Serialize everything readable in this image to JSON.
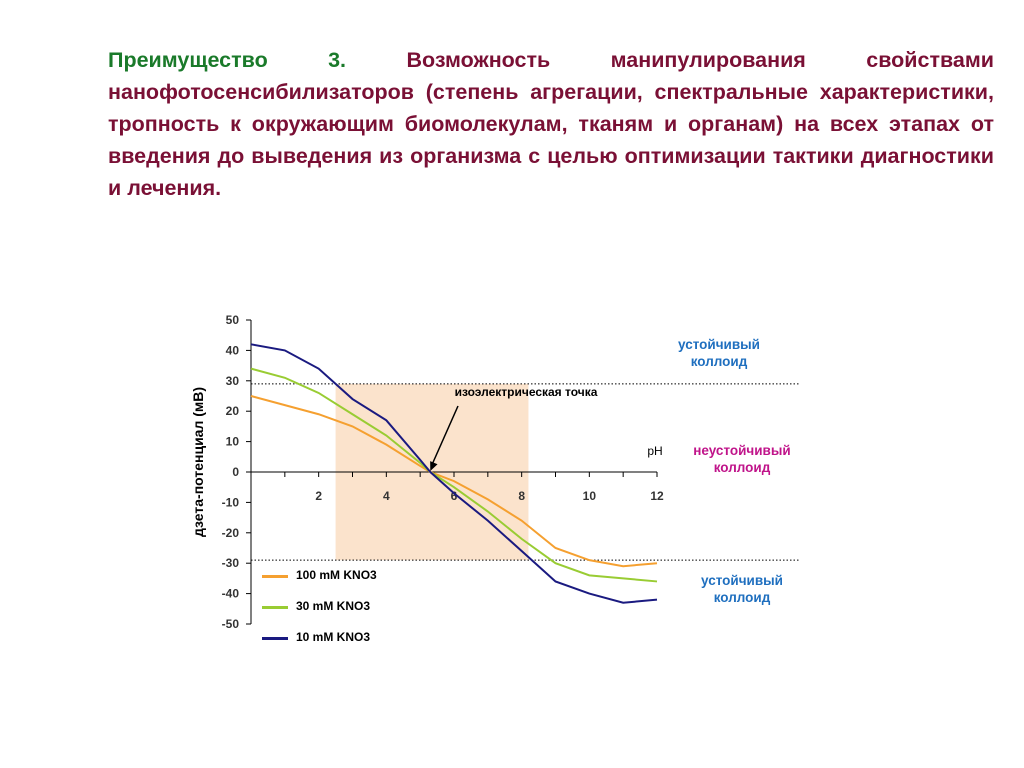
{
  "slide": {
    "lead": "Преимущество 3.",
    "text": "Возможность манипулирования свойствами нанофотосенсибилизаторов (степень агрегации, спектральные характеристики, тропность к окружающим биомолекулам, тканям и органам) на всех этапах от введения до выведения из организма с целью оптимизации тактики диагностики и лечения.",
    "lead_color": "#1a7a2a",
    "text_color": "#7a1035"
  },
  "chart_data": {
    "type": "line",
    "title": "",
    "xlabel": "pH",
    "ylabel": "дзета-потенциал (мВ)",
    "xlim": [
      0,
      12
    ],
    "ylim": [
      -50,
      50
    ],
    "x_ticks": [
      2,
      4,
      6,
      8,
      10,
      12
    ],
    "y_ticks": [
      50,
      40,
      30,
      20,
      10,
      0,
      -10,
      -20,
      -30,
      -40,
      -50
    ],
    "grid": false,
    "legend_position": "bottom-left",
    "shaded_region": {
      "x": [
        2.5,
        8.2
      ],
      "y": [
        -29,
        29
      ],
      "color": "#fbe3cc"
    },
    "threshold_lines": [
      29,
      -29
    ],
    "isoelectric_point": {
      "x": 5.3,
      "y": 0,
      "label": "изоэлектрическая точка"
    },
    "zones": [
      {
        "label": "устойчивый\nколлоид",
        "color": "#1f6fbf"
      },
      {
        "label": "неустойчивый\nколлоид",
        "color": "#c0148a"
      },
      {
        "label": "устойчивый\nколлоид",
        "color": "#1f6fbf"
      }
    ],
    "series": [
      {
        "name": "100 mM KNO3",
        "color": "#f5a030",
        "x": [
          0,
          1,
          2,
          3,
          4,
          5,
          5.3,
          6,
          7,
          8,
          9,
          10,
          11,
          12
        ],
        "y": [
          25,
          22,
          19,
          15,
          9,
          2,
          0,
          -3,
          -9,
          -16,
          -25,
          -29,
          -31,
          -30
        ]
      },
      {
        "name": "30 mM KNO3",
        "color": "#99cc33",
        "x": [
          0,
          1,
          2,
          3,
          4,
          5,
          5.3,
          6,
          7,
          8,
          9,
          10,
          11,
          12
        ],
        "y": [
          34,
          31,
          26,
          19,
          12,
          3,
          0,
          -5,
          -13,
          -22,
          -30,
          -34,
          -35,
          -36
        ]
      },
      {
        "name": "10 mM KNO3",
        "color": "#1a1a80",
        "x": [
          0,
          1,
          2,
          3,
          4,
          5,
          5.3,
          6,
          7,
          8,
          9,
          10,
          11,
          12
        ],
        "y": [
          42,
          40,
          34,
          24,
          17,
          4,
          0,
          -7,
          -16,
          -26,
          -36,
          -40,
          -43,
          -42
        ]
      }
    ]
  }
}
